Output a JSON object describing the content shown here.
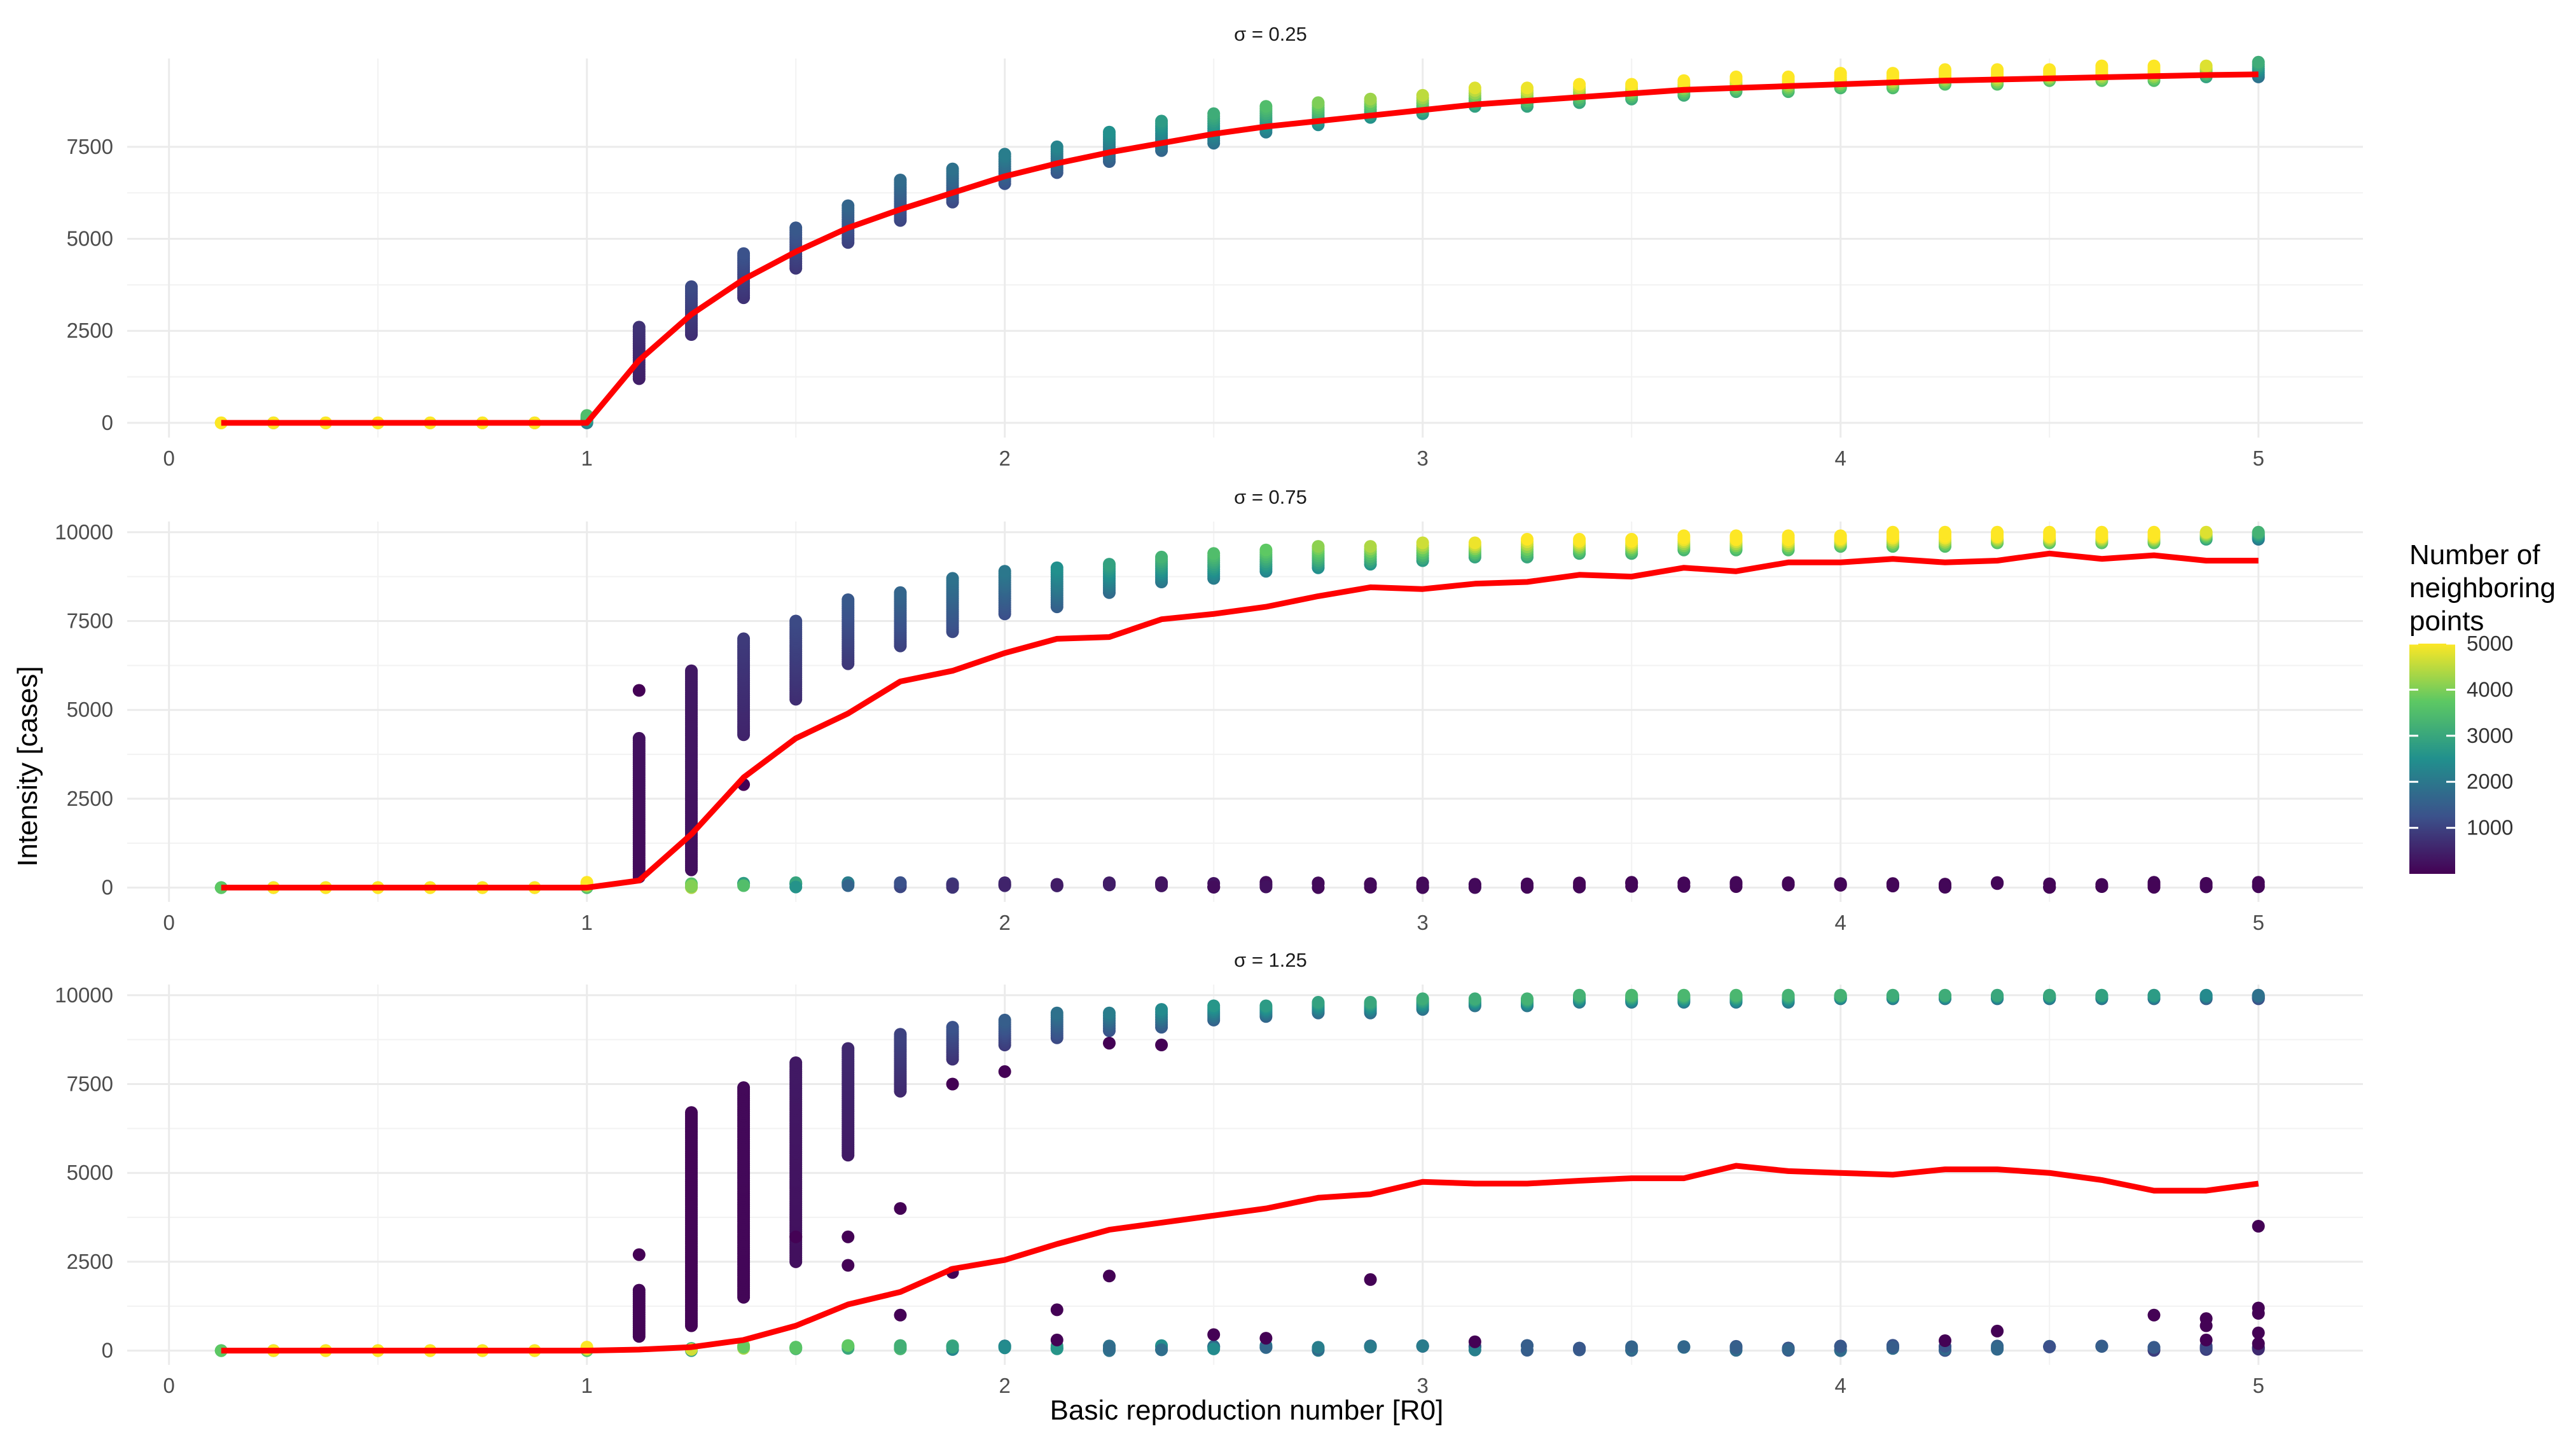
{
  "chart_data": {
    "type": "scatter",
    "xlabel": "Basic reproduction number [R0]",
    "ylabel": "Intensity [cases]",
    "xlim": [
      -0.1,
      5.25
    ],
    "x_ticks": [
      "0",
      "1",
      "2",
      "3",
      "4",
      "5"
    ],
    "x_tick_values": [
      0,
      1,
      2,
      3,
      4,
      5
    ],
    "grid": true,
    "legend": {
      "title_lines": [
        "Number of",
        "neighboring",
        "points"
      ],
      "placement": "right",
      "ticks": [
        "1000",
        "2000",
        "3000",
        "4000",
        "5000"
      ],
      "tick_values": [
        1000,
        2000,
        3000,
        4000,
        5000
      ],
      "range": [
        1,
        5000
      ],
      "palette": [
        "#440154",
        "#3b528b",
        "#21908d",
        "#5dc863",
        "#fde725"
      ]
    },
    "line_color": "#ff0000",
    "r0_grid": [
      0.125,
      0.25,
      0.375,
      0.5,
      0.625,
      0.75,
      0.875,
      1.0,
      1.125,
      1.25,
      1.375,
      1.5,
      1.625,
      1.75,
      1.875,
      2.0,
      2.125,
      2.25,
      2.375,
      2.5,
      2.625,
      2.75,
      2.875,
      3.0,
      3.125,
      3.25,
      3.375,
      3.5,
      3.625,
      3.75,
      3.875,
      4.0,
      4.125,
      4.25,
      4.375,
      4.5,
      4.625,
      4.75,
      4.875,
      5.0
    ],
    "panels": [
      {
        "strip": "σ =  0.25",
        "ylim": [
          -400,
          9900
        ],
        "y_ticks": [
          "0",
          "2500",
          "5000",
          "7500"
        ],
        "y_tick_values": [
          0,
          2500,
          5000,
          7500
        ],
        "mean_line": [
          0,
          0,
          0,
          0,
          0,
          0,
          0,
          0,
          1700,
          2950,
          3900,
          4650,
          5300,
          5800,
          6250,
          6700,
          7050,
          7350,
          7600,
          7850,
          8050,
          8200,
          8350,
          8500,
          8650,
          8750,
          8850,
          8950,
          9050,
          9100,
          9150,
          9200,
          9250,
          9300,
          9330,
          9360,
          9390,
          9420,
          9450,
          9470
        ],
        "groups": [
          {
            "lo": 0,
            "hi": 0,
            "n": 5000
          },
          {
            "lo": 0,
            "hi": 0,
            "n": 4000
          },
          {
            "lo": 0,
            "hi": 0,
            "n": 4800
          },
          {
            "lo": 0,
            "hi": 0,
            "n": 4900
          },
          {
            "lo": 0,
            "hi": 0,
            "n": 4900
          },
          {
            "lo": 0,
            "hi": 0,
            "n": 4800
          },
          {
            "lo": 0,
            "hi": 0,
            "n": 4600
          },
          {
            "lo": 0,
            "hi": 200,
            "n": 2800
          },
          {
            "lo": 1200,
            "hi": 2600,
            "n": 600
          },
          {
            "lo": 2400,
            "hi": 3700,
            "n": 900
          },
          {
            "lo": 3400,
            "hi": 4600,
            "n": 1000
          },
          {
            "lo": 4200,
            "hi": 5300,
            "n": 1100
          },
          {
            "lo": 4900,
            "hi": 5900,
            "n": 1300
          },
          {
            "lo": 5500,
            "hi": 6600,
            "n": 1400
          },
          {
            "lo": 6000,
            "hi": 6900,
            "n": 1500
          },
          {
            "lo": 6500,
            "hi": 7300,
            "n": 1700
          },
          {
            "lo": 6800,
            "hi": 7500,
            "n": 1800
          },
          {
            "lo": 7100,
            "hi": 7900,
            "n": 2000
          },
          {
            "lo": 7400,
            "hi": 8200,
            "n": 2200
          },
          {
            "lo": 7600,
            "hi": 8400,
            "n": 2500
          },
          {
            "lo": 7900,
            "hi": 8600,
            "n": 2800
          },
          {
            "lo": 8100,
            "hi": 8700,
            "n": 3200
          },
          {
            "lo": 8300,
            "hi": 8800,
            "n": 3400
          },
          {
            "lo": 8400,
            "hi": 8900,
            "n": 3600
          },
          {
            "lo": 8600,
            "hi": 9100,
            "n": 3800
          },
          {
            "lo": 8600,
            "hi": 9100,
            "n": 3900
          },
          {
            "lo": 8700,
            "hi": 9200,
            "n": 4000
          },
          {
            "lo": 8800,
            "hi": 9200,
            "n": 4100
          },
          {
            "lo": 8900,
            "hi": 9300,
            "n": 4200
          },
          {
            "lo": 9000,
            "hi": 9400,
            "n": 4300
          },
          {
            "lo": 9000,
            "hi": 9400,
            "n": 4400
          },
          {
            "lo": 9100,
            "hi": 9500,
            "n": 4500
          },
          {
            "lo": 9100,
            "hi": 9500,
            "n": 4600
          },
          {
            "lo": 9200,
            "hi": 9600,
            "n": 4700
          },
          {
            "lo": 9200,
            "hi": 9600,
            "n": 4800
          },
          {
            "lo": 9300,
            "hi": 9600,
            "n": 4800
          },
          {
            "lo": 9300,
            "hi": 9700,
            "n": 4900
          },
          {
            "lo": 9300,
            "hi": 9700,
            "n": 4700
          },
          {
            "lo": 9400,
            "hi": 9700,
            "n": 3800
          },
          {
            "lo": 9400,
            "hi": 9800,
            "n": 2500
          }
        ]
      },
      {
        "strip": "σ =  0.75",
        "ylim": [
          -400,
          10300
        ],
        "y_ticks": [
          "0",
          "2500",
          "5000",
          "7500",
          "10000"
        ],
        "y_tick_values": [
          0,
          2500,
          5000,
          7500,
          10000
        ],
        "mean_line": [
          0,
          0,
          0,
          0,
          0,
          0,
          0,
          0,
          200,
          1500,
          3100,
          4200,
          4900,
          5800,
          6100,
          6600,
          7000,
          7050,
          7550,
          7700,
          7900,
          8200,
          8450,
          8400,
          8550,
          8600,
          8800,
          8750,
          9000,
          8900,
          9150,
          9150,
          9250,
          9150,
          9200,
          9400,
          9250,
          9350,
          9200,
          9200
        ],
        "groups": [
          {
            "lo": 0,
            "hi": 0,
            "n": 3000
          },
          {
            "lo": 0,
            "hi": 0,
            "n": 4000
          },
          {
            "lo": 0,
            "hi": 0,
            "n": 4800
          },
          {
            "lo": 0,
            "hi": 0,
            "n": 4900
          },
          {
            "lo": 0,
            "hi": 0,
            "n": 4900
          },
          {
            "lo": 0,
            "hi": 0,
            "n": 4800
          },
          {
            "lo": 0,
            "hi": 0,
            "n": 4700
          },
          {
            "lo": 0,
            "hi": 150,
            "n": 4500
          },
          {
            "lo": 300,
            "hi": 4200,
            "n": 200,
            "extra": [
              5550
            ]
          },
          {
            "lo": 500,
            "hi": 6100,
            "n": 300
          },
          {
            "lo": 4300,
            "hi": 7000,
            "n": 700,
            "extra": [
              2900
            ]
          },
          {
            "lo": 5300,
            "hi": 7500,
            "n": 900
          },
          {
            "lo": 6300,
            "hi": 8100,
            "n": 1100
          },
          {
            "lo": 6800,
            "hi": 8300,
            "n": 1300
          },
          {
            "lo": 7200,
            "hi": 8700,
            "n": 1500
          },
          {
            "lo": 7700,
            "hi": 8900,
            "n": 1600
          },
          {
            "lo": 7900,
            "hi": 9000,
            "n": 2000
          },
          {
            "lo": 8300,
            "hi": 9100,
            "n": 2300
          },
          {
            "lo": 8600,
            "hi": 9300,
            "n": 2600
          },
          {
            "lo": 8700,
            "hi": 9400,
            "n": 2800
          },
          {
            "lo": 8900,
            "hi": 9500,
            "n": 3000
          },
          {
            "lo": 9000,
            "hi": 9600,
            "n": 3300
          },
          {
            "lo": 9100,
            "hi": 9600,
            "n": 3500
          },
          {
            "lo": 9200,
            "hi": 9700,
            "n": 3700
          },
          {
            "lo": 9300,
            "hi": 9700,
            "n": 3900
          },
          {
            "lo": 9300,
            "hi": 9800,
            "n": 4000
          },
          {
            "lo": 9400,
            "hi": 9800,
            "n": 4200
          },
          {
            "lo": 9400,
            "hi": 9800,
            "n": 4300
          },
          {
            "lo": 9500,
            "hi": 9900,
            "n": 4400
          },
          {
            "lo": 9500,
            "hi": 9900,
            "n": 4500
          },
          {
            "lo": 9500,
            "hi": 9900,
            "n": 4600
          },
          {
            "lo": 9600,
            "hi": 9900,
            "n": 4600
          },
          {
            "lo": 9600,
            "hi": 10000,
            "n": 4700
          },
          {
            "lo": 9600,
            "hi": 10000,
            "n": 4700
          },
          {
            "lo": 9700,
            "hi": 10000,
            "n": 4800
          },
          {
            "lo": 9700,
            "hi": 10000,
            "n": 4800
          },
          {
            "lo": 9700,
            "hi": 10000,
            "n": 4800
          },
          {
            "lo": 9700,
            "hi": 10000,
            "n": 4700
          },
          {
            "lo": 9800,
            "hi": 10000,
            "n": 3800
          },
          {
            "lo": 9800,
            "hi": 10000,
            "n": 2600
          }
        ],
        "zero_band": [
          4500,
          4000,
          3200,
          2200,
          1500,
          1100,
          800,
          600,
          500,
          400,
          300,
          250,
          200,
          200,
          150,
          150,
          100,
          100,
          100,
          100,
          100,
          100,
          100,
          100,
          100,
          100,
          100,
          100,
          100,
          100,
          100
        ]
      },
      {
        "strip": "σ =  1.25",
        "ylim": [
          -400,
          10300
        ],
        "y_ticks": [
          "0",
          "2500",
          "5000",
          "7500",
          "10000"
        ],
        "y_tick_values": [
          0,
          2500,
          5000,
          7500,
          10000
        ],
        "mean_line": [
          0,
          0,
          0,
          0,
          0,
          0,
          0,
          0,
          30,
          100,
          300,
          700,
          1300,
          1650,
          2300,
          2550,
          3000,
          3400,
          3600,
          3800,
          4000,
          4300,
          4400,
          4750,
          4700,
          4700,
          4780,
          4850,
          4850,
          5200,
          5050,
          5000,
          4950,
          5100,
          5100,
          5000,
          4800,
          4500,
          4500,
          4700
        ],
        "groups": [
          {
            "lo": 0,
            "hi": 0,
            "n": 3000
          },
          {
            "lo": 0,
            "hi": 0,
            "n": 4000
          },
          {
            "lo": 0,
            "hi": 0,
            "n": 4800
          },
          {
            "lo": 0,
            "hi": 0,
            "n": 4900
          },
          {
            "lo": 0,
            "hi": 0,
            "n": 4900
          },
          {
            "lo": 0,
            "hi": 0,
            "n": 4800
          },
          {
            "lo": 0,
            "hi": 0,
            "n": 4700
          },
          {
            "lo": 0,
            "hi": 100,
            "n": 4500
          },
          {
            "lo": 400,
            "hi": 1700,
            "n": 60,
            "extra": [
              2700
            ]
          },
          {
            "lo": 700,
            "hi": 6700,
            "n": 60
          },
          {
            "lo": 1500,
            "hi": 7400,
            "n": 100
          },
          {
            "lo": 2500,
            "hi": 8100,
            "n": 300,
            "extra": [
              3200
            ]
          },
          {
            "lo": 5500,
            "hi": 8500,
            "n": 500,
            "extra": [
              2400,
              3200
            ]
          },
          {
            "lo": 7300,
            "hi": 8900,
            "n": 800,
            "extra": [
              4000,
              1000
            ]
          },
          {
            "lo": 8200,
            "hi": 9100,
            "n": 1000,
            "extra": [
              7500,
              2200
            ]
          },
          {
            "lo": 8600,
            "hi": 9300,
            "n": 1200,
            "extra": [
              7850
            ]
          },
          {
            "lo": 8800,
            "hi": 9500,
            "n": 1500,
            "extra": [
              1150
            ]
          },
          {
            "lo": 9000,
            "hi": 9500,
            "n": 1700,
            "extra": [
              8650,
              2100
            ]
          },
          {
            "lo": 9100,
            "hi": 9600,
            "n": 1900,
            "extra": [
              8600
            ]
          },
          {
            "lo": 9300,
            "hi": 9700,
            "n": 2100
          },
          {
            "lo": 9400,
            "hi": 9700,
            "n": 2200
          },
          {
            "lo": 9500,
            "hi": 9800,
            "n": 2300
          },
          {
            "lo": 9500,
            "hi": 9800,
            "n": 2400,
            "extra": [
              2000
            ]
          },
          {
            "lo": 9600,
            "hi": 9900,
            "n": 2500
          },
          {
            "lo": 9700,
            "hi": 9900,
            "n": 2500
          },
          {
            "lo": 9700,
            "hi": 9900,
            "n": 2600
          },
          {
            "lo": 9800,
            "hi": 10000,
            "n": 2600
          },
          {
            "lo": 9800,
            "hi": 10000,
            "n": 2700
          },
          {
            "lo": 9800,
            "hi": 10000,
            "n": 2700
          },
          {
            "lo": 9800,
            "hi": 10000,
            "n": 2700
          },
          {
            "lo": 9800,
            "hi": 10000,
            "n": 2600
          },
          {
            "lo": 9900,
            "hi": 10000,
            "n": 2600
          },
          {
            "lo": 9900,
            "hi": 10000,
            "n": 2500
          },
          {
            "lo": 9900,
            "hi": 10000,
            "n": 2500
          },
          {
            "lo": 9900,
            "hi": 10000,
            "n": 2400
          },
          {
            "lo": 9900,
            "hi": 10000,
            "n": 2400
          },
          {
            "lo": 9900,
            "hi": 10000,
            "n": 2300
          },
          {
            "lo": 9900,
            "hi": 10000,
            "n": 2200
          },
          {
            "lo": 9900,
            "hi": 10000,
            "n": 1900
          },
          {
            "lo": 9900,
            "hi": 10000,
            "n": 1500
          }
        ],
        "zero_band": [
          4800,
          4600,
          4300,
          3800,
          3500,
          3300,
          3100,
          3000,
          2900,
          2800,
          2700,
          2600,
          2500,
          2400,
          2300,
          2200,
          2100,
          2000,
          2000,
          2000,
          2000,
          1900,
          1900,
          1900,
          1800,
          1800,
          1700,
          1600,
          1500,
          1200,
          900
        ],
        "low_extras": [
          {
            "x": 4.375,
            "y": 550
          },
          {
            "x": 4.75,
            "y": 1000
          },
          {
            "x": 4.875,
            "y": 900
          },
          {
            "x": 4.875,
            "y": 700
          },
          {
            "x": 4.875,
            "y": 300
          },
          {
            "x": 5.0,
            "y": 3500
          },
          {
            "x": 5.0,
            "y": 1200
          },
          {
            "x": 5.0,
            "y": 1050
          },
          {
            "x": 5.0,
            "y": 500
          },
          {
            "x": 5.0,
            "y": 200
          },
          {
            "x": 2.125,
            "y": 300
          },
          {
            "x": 2.5,
            "y": 450
          },
          {
            "x": 2.625,
            "y": 350
          },
          {
            "x": 3.125,
            "y": 250
          },
          {
            "x": 4.25,
            "y": 280
          }
        ]
      }
    ]
  }
}
